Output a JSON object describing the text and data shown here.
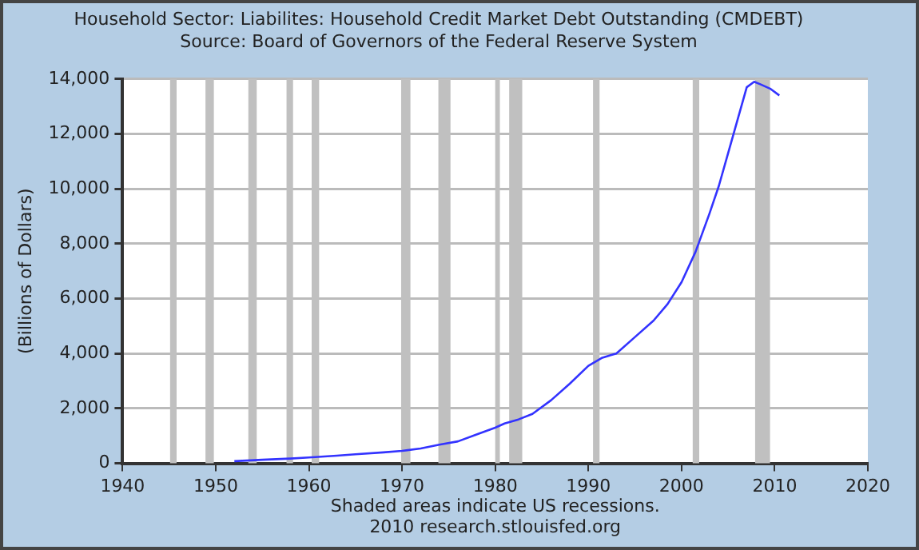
{
  "chart_data": {
    "type": "line",
    "title": "Household Sector: Liabilites: Household Credit Market Debt Outstanding (CMDEBT)",
    "subtitle": "Source: Board of Governors of the Federal Reserve System",
    "ylabel": "(Billions of Dollars)",
    "x": [
      1952,
      1955,
      1958,
      1960,
      1963,
      1965,
      1968,
      1970,
      1972,
      1974,
      1976,
      1978,
      1980,
      1981,
      1982.5,
      1984,
      1986,
      1988,
      1990,
      1991.5,
      1993,
      1995,
      1997,
      1998.5,
      2000,
      2001.5,
      2003,
      2004,
      2005,
      2006,
      2007,
      2007.8,
      2008.5,
      2009.5,
      2010.5
    ],
    "series": [
      {
        "color": "#3333ff",
        "values": [
          80,
          130,
          175,
          215,
          280,
          330,
          400,
          455,
          540,
          680,
          800,
          1050,
          1300,
          1450,
          1600,
          1800,
          2300,
          2900,
          3550,
          3850,
          4000,
          4600,
          5200,
          5800,
          6600,
          7700,
          9100,
          10100,
          11300,
          12500,
          13700,
          13900,
          13800,
          13650,
          13400
        ]
      }
    ],
    "xlim": [
      1940,
      2020
    ],
    "xticks": [
      1940,
      1950,
      1960,
      1970,
      1980,
      1990,
      2000,
      2010,
      2020
    ],
    "ylim": [
      0,
      14000
    ],
    "yticks": [
      {
        "value": 0,
        "label": "0"
      },
      {
        "value": 2000,
        "label": "2,000"
      },
      {
        "value": 4000,
        "label": "4,000"
      },
      {
        "value": 6000,
        "label": "6,000"
      },
      {
        "value": 8000,
        "label": "8,000"
      },
      {
        "value": 10000,
        "label": "10,000"
      },
      {
        "value": 12000,
        "label": "12,000"
      },
      {
        "value": 14000,
        "label": "14,000"
      }
    ],
    "grid": "y",
    "legend": false,
    "marker": "none",
    "line_style": "solid",
    "bands": [
      {
        "axis": "x",
        "from": 1945.1,
        "to": 1945.8,
        "color": "#c0c0c0"
      },
      {
        "axis": "x",
        "from": 1948.9,
        "to": 1949.8,
        "color": "#c0c0c0"
      },
      {
        "axis": "x",
        "from": 1953.5,
        "to": 1954.4,
        "color": "#c0c0c0"
      },
      {
        "axis": "x",
        "from": 1957.6,
        "to": 1958.3,
        "color": "#c0c0c0"
      },
      {
        "axis": "x",
        "from": 1960.3,
        "to": 1961.1,
        "color": "#c0c0c0"
      },
      {
        "axis": "x",
        "from": 1969.9,
        "to": 1970.9,
        "color": "#c0c0c0"
      },
      {
        "axis": "x",
        "from": 1973.9,
        "to": 1975.2,
        "color": "#c0c0c0"
      },
      {
        "axis": "x",
        "from": 1980.0,
        "to": 1980.5,
        "color": "#c0c0c0"
      },
      {
        "axis": "x",
        "from": 1981.5,
        "to": 1982.9,
        "color": "#c0c0c0"
      },
      {
        "axis": "x",
        "from": 1990.5,
        "to": 1991.2,
        "color": "#c0c0c0"
      },
      {
        "axis": "x",
        "from": 2001.2,
        "to": 2001.9,
        "color": "#c0c0c0"
      },
      {
        "axis": "x",
        "from": 2007.9,
        "to": 2009.5,
        "color": "#c0c0c0"
      }
    ],
    "annotations": [
      "Shaded areas indicate US recessions.",
      "2010 research.stlouisfed.org"
    ]
  }
}
